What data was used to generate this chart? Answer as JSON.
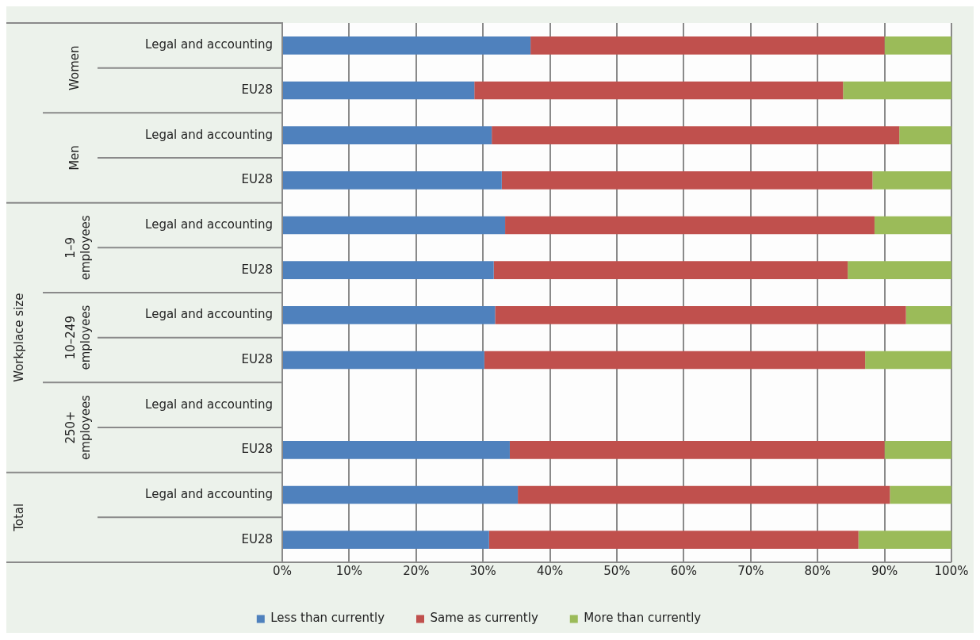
{
  "chart_data": {
    "type": "bar",
    "orientation": "horizontal",
    "stacked": true,
    "categories": [
      "Legal and accounting",
      "EU28",
      "Legal and accounting",
      "EU28",
      "Legal and accounting",
      "EU28",
      "Legal and accounting",
      "EU28",
      "Legal and accounting",
      "EU28",
      "Legal and accounting",
      "EU28"
    ],
    "series": [
      {
        "name": "Less than currently",
        "color": "#4f81bd",
        "values": [
          37.1,
          28.7,
          31.3,
          32.8,
          33.3,
          31.6,
          31.8,
          30.2,
          null,
          34.0,
          35.2,
          30.9
        ]
      },
      {
        "name": "Same as currently",
        "color": "#c0504d",
        "values": [
          52.9,
          55.1,
          60.9,
          55.4,
          55.2,
          52.9,
          61.4,
          56.9,
          null,
          56.0,
          55.6,
          55.2
        ]
      },
      {
        "name": "More than currently",
        "color": "#9bbb59",
        "values": [
          10.0,
          16.2,
          7.8,
          11.8,
          11.5,
          15.5,
          6.8,
          12.9,
          null,
          10.0,
          9.2,
          13.9
        ]
      }
    ],
    "xlim": [
      0,
      100
    ],
    "xticks": [
      {
        "value": 0,
        "label": "0%"
      },
      {
        "value": 10,
        "label": "10%"
      },
      {
        "value": 20,
        "label": "20%"
      },
      {
        "value": 30,
        "label": "30%"
      },
      {
        "value": 40,
        "label": "40%"
      },
      {
        "value": 50,
        "label": "50%"
      },
      {
        "value": 60,
        "label": "60%"
      },
      {
        "value": 70,
        "label": "70%"
      },
      {
        "value": 80,
        "label": "80%"
      },
      {
        "value": 90,
        "label": "90%"
      },
      {
        "value": 100,
        "label": "100%"
      }
    ],
    "annotations": [
      "Women",
      "Men",
      "1–9 employees",
      "10–249 employees",
      "250+ employees",
      "Total",
      "Workplace size"
    ],
    "grid": "x",
    "legend": "bottom"
  }
}
